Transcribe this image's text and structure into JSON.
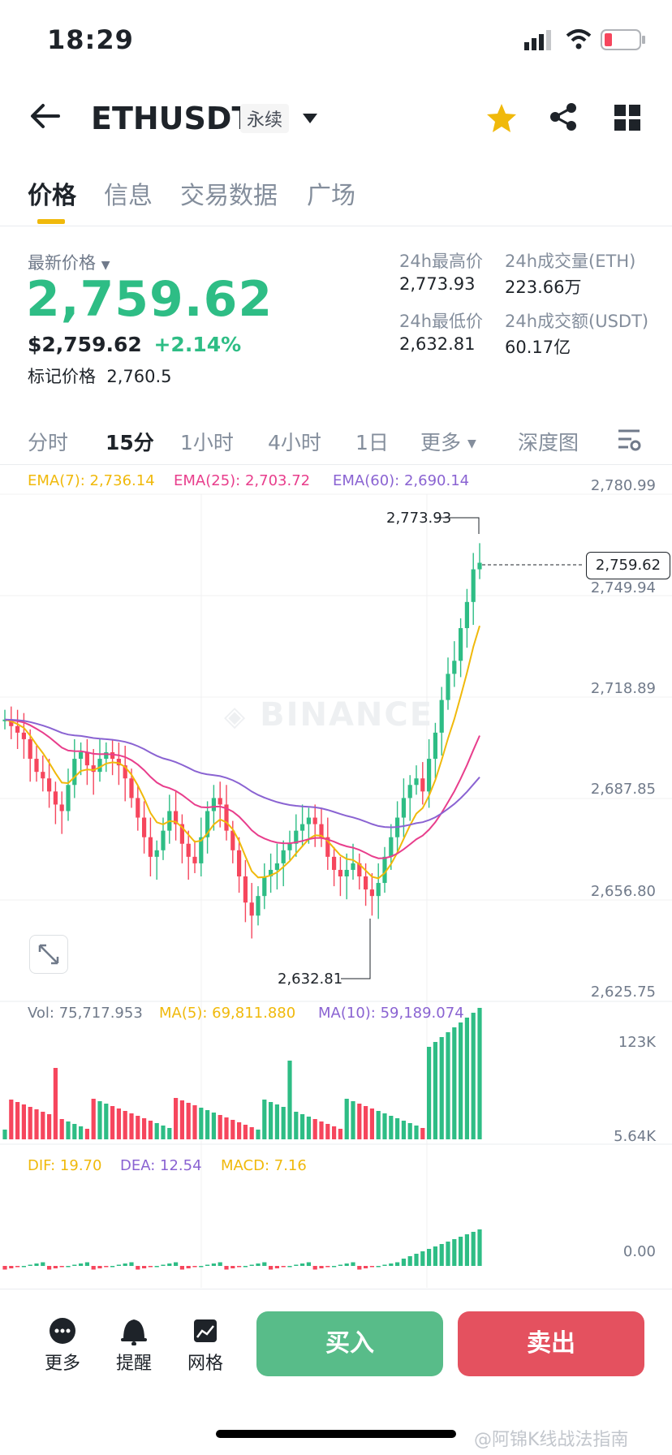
{
  "status_bar": {
    "time": "18:29"
  },
  "header": {
    "symbol": "ETHUSDT",
    "contract_type": "永续"
  },
  "tabs": [
    "价格",
    "信息",
    "交易数据",
    "广场"
  ],
  "ticker": {
    "latest_price_label": "最新价格",
    "latest_price": "2,759.62",
    "usd_price": "$2,759.62",
    "change_pct": "+2.14%",
    "mark_price_label": "标记价格",
    "mark_price": "2,760.5",
    "high_label": "24h最高价",
    "high": "2,773.93",
    "low_label": "24h最低价",
    "low": "2,632.81",
    "vol_eth_label": "24h成交量(ETH)",
    "vol_eth": "223.66万",
    "vol_usdt_label": "24h成交额(USDT)",
    "vol_usdt": "60.17亿"
  },
  "timeframes": [
    "分时",
    "15分",
    "1小时",
    "4小时",
    "1日",
    "更多",
    "深度图"
  ],
  "indicators": {
    "ema7": "EMA(7): 2,736.14",
    "ema25": "EMA(25): 2,703.72",
    "ema60": "EMA(60): 2,690.14",
    "vol": "Vol: 75,717.953",
    "ma5": "MA(5): 69,811.880",
    "ma10": "MA(10): 59,189.074",
    "dif": "DIF: 19.70",
    "dea": "DEA: 12.54",
    "macd": "MACD: 7.16"
  },
  "chart_axis": {
    "price_ticks": [
      "2,780.99",
      "2,749.94",
      "2,718.89",
      "2,687.85",
      "2,656.80",
      "2,625.75"
    ],
    "current_price_tag": "2,759.62",
    "high_marker": "2,773.93",
    "low_marker": "2,632.81",
    "vol_ticks": [
      "123K",
      "5.64K"
    ],
    "macd_tick": "0.00"
  },
  "watermark": "BINANCE",
  "bottom_bar": {
    "more": "更多",
    "alert": "提醒",
    "grid": "网格",
    "buy": "买入",
    "sell": "卖出"
  },
  "footer_watermark": "@阿锦K线战法指南",
  "colors": {
    "up": "#2ebd85",
    "down": "#f6465d",
    "ema7": "#f0b90b",
    "ema25": "#e83e8c",
    "ema60": "#8a63d2",
    "accent": "#f0b90b"
  }
}
